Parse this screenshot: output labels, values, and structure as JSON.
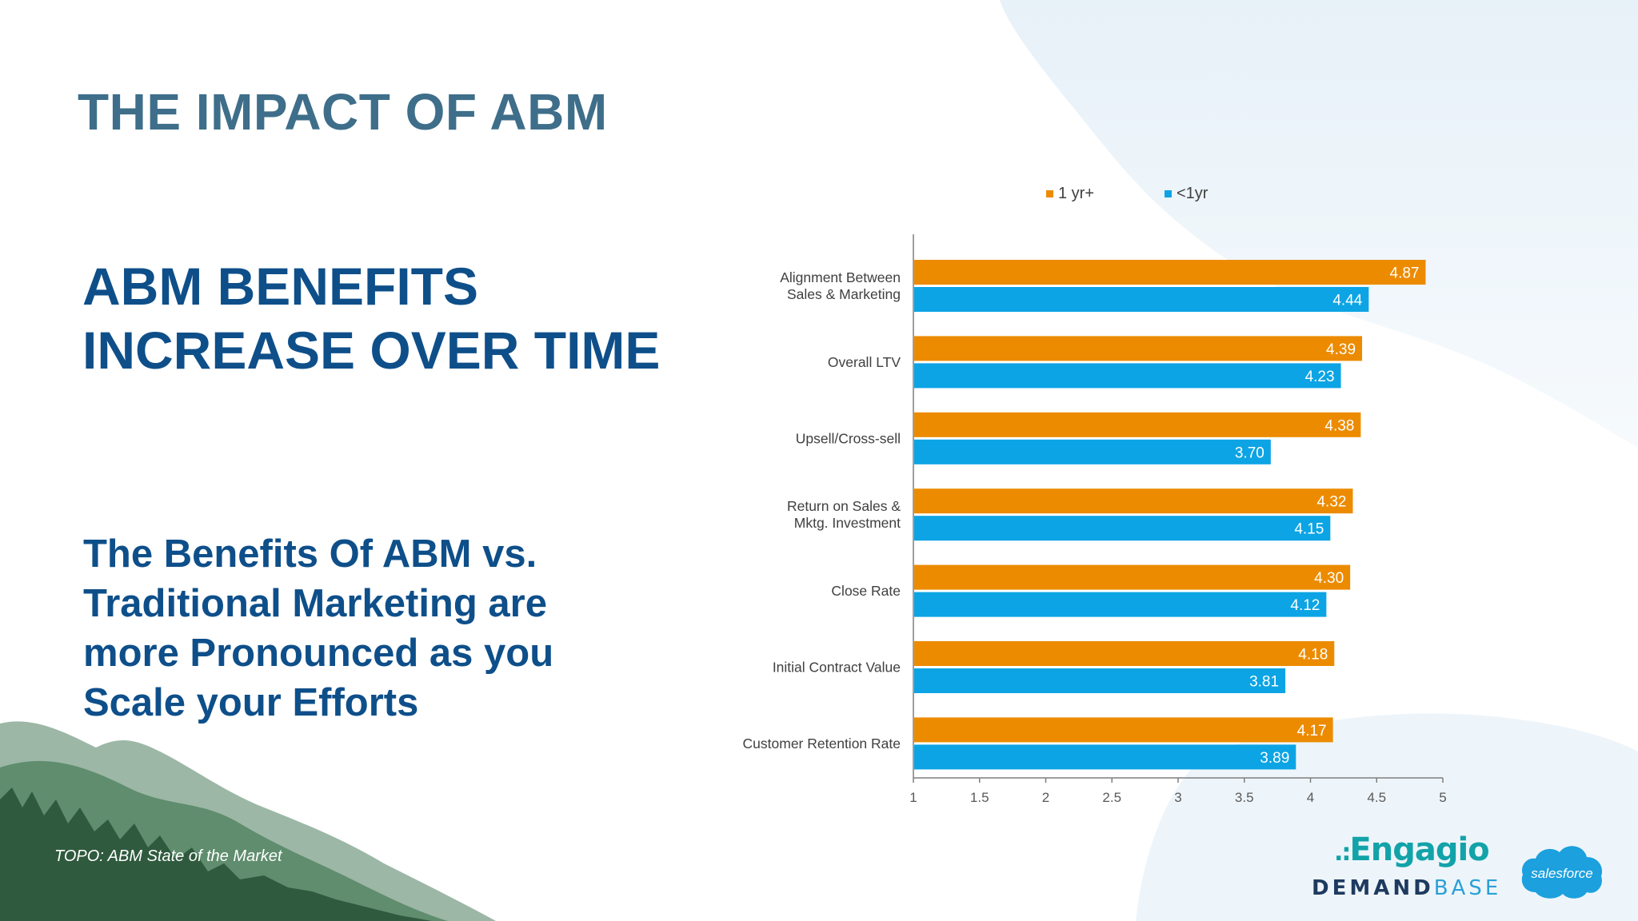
{
  "slide": {
    "title": "THE IMPACT OF ABM",
    "headline_lines": [
      "ABM BENEFITS",
      "INCREASE OVER TIME"
    ],
    "subhead_lines": [
      "The Benefits Of ABM vs.",
      "Traditional Marketing are",
      "more Pronounced as you",
      "Scale your Efforts"
    ],
    "source": "TOPO: ABM State of the Market"
  },
  "logos": {
    "engagio": {
      "dots": ".:",
      "text": "Engagio"
    },
    "demandbase": {
      "part1": "DEMAND",
      "part2": "BASE"
    },
    "salesforce": "salesforce"
  },
  "colors": {
    "title": "#3e6e8a",
    "headline": "#0e4f8a",
    "series_1yr_plus": "#ec8b00",
    "series_lt_1yr": "#0ca4e4"
  },
  "chart_data": {
    "type": "bar",
    "orientation": "horizontal",
    "categories": [
      [
        "Alignment Between",
        "Sales & Marketing"
      ],
      [
        "Overall LTV"
      ],
      [
        "Upsell/Cross-sell"
      ],
      [
        "Return on Sales &",
        "Mktg. Investment"
      ],
      [
        "Close Rate"
      ],
      [
        "Initial Contract Value"
      ],
      [
        "Customer Retention Rate"
      ]
    ],
    "series": [
      {
        "name": "1 yr+",
        "color": "#ec8b00",
        "values": [
          4.87,
          4.39,
          4.38,
          4.32,
          4.3,
          4.18,
          4.17
        ]
      },
      {
        "name": "<1yr",
        "color": "#0ca4e4",
        "values": [
          4.44,
          4.23,
          3.7,
          4.15,
          4.12,
          3.81,
          3.89
        ]
      }
    ],
    "xlim": [
      1,
      5
    ],
    "xticks": [
      "1",
      "1.5",
      "2",
      "2.5",
      "3",
      "3.5",
      "4",
      "4.5",
      "5"
    ],
    "data_labels": true,
    "legend": "top",
    "grid": false
  }
}
